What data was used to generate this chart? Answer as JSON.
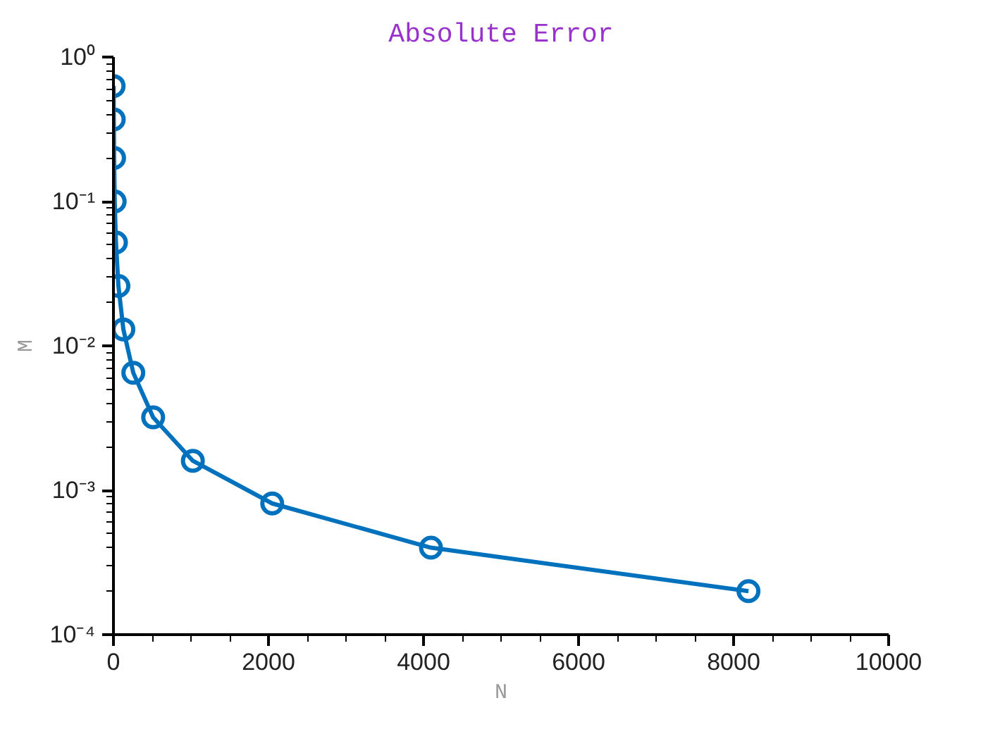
{
  "chart_data": {
    "type": "line",
    "title": "Absolute Error",
    "xlabel": "N",
    "ylabel": "M",
    "x": [
      2,
      4,
      8,
      16,
      32,
      64,
      128,
      256,
      512,
      1024,
      2048,
      4096,
      8192
    ],
    "series": [
      {
        "color": "#0072bd",
        "values": [
          0.63,
          0.37,
          0.2,
          0.1,
          0.052,
          0.026,
          0.013,
          0.0065,
          0.0032,
          0.0016,
          0.00081,
          0.0004,
          0.0002
        ]
      }
    ],
    "log": "y",
    "xlim": [
      0,
      10000
    ],
    "ylim": [
      0.0001,
      1
    ],
    "xticks": [
      0,
      2000,
      4000,
      6000,
      8000,
      10000
    ],
    "yticks": [
      {
        "value": 0.0001,
        "label": "10⁻⁴"
      },
      {
        "value": 0.001,
        "label": "10⁻³"
      },
      {
        "value": 0.01,
        "label": "10⁻²"
      },
      {
        "value": 0.1,
        "label": "10⁻¹"
      },
      {
        "value": 1,
        "label": "10⁰"
      }
    ],
    "marker": "circle",
    "line_style": "solid",
    "grid": false
  }
}
